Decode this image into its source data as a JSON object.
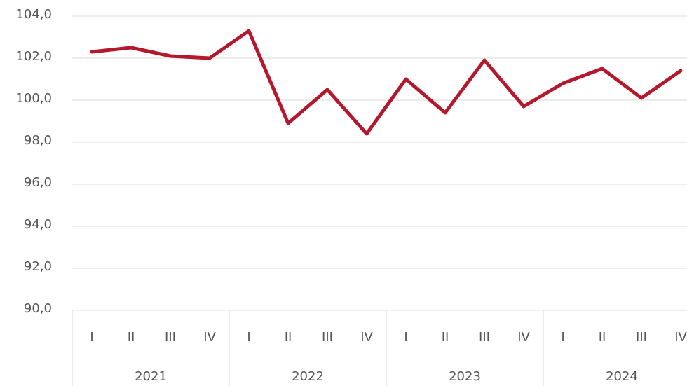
{
  "chart_data": {
    "type": "line",
    "categories": [
      "I",
      "II",
      "III",
      "IV",
      "I",
      "II",
      "III",
      "IV",
      "I",
      "II",
      "III",
      "IV",
      "I",
      "II",
      "III",
      "IV"
    ],
    "groups": [
      "2021",
      "2022",
      "2023",
      "2024"
    ],
    "values": [
      102.3,
      102.5,
      102.1,
      102.0,
      103.3,
      98.9,
      100.5,
      98.4,
      101.0,
      99.4,
      101.9,
      99.7,
      100.8,
      101.5,
      100.1,
      101.4
    ],
    "color": "#b3182d",
    "ylim": [
      90,
      104
    ],
    "yticks": [
      {
        "value": 90,
        "label": "90,0"
      },
      {
        "value": 92,
        "label": "92,0"
      },
      {
        "value": 94,
        "label": "94,0"
      },
      {
        "value": 96,
        "label": "96,0"
      },
      {
        "value": 98,
        "label": "98,0"
      },
      {
        "value": 100,
        "label": "100,0"
      },
      {
        "value": 102,
        "label": "102,0"
      },
      {
        "value": 104,
        "label": "104,0"
      }
    ],
    "grid": true
  }
}
